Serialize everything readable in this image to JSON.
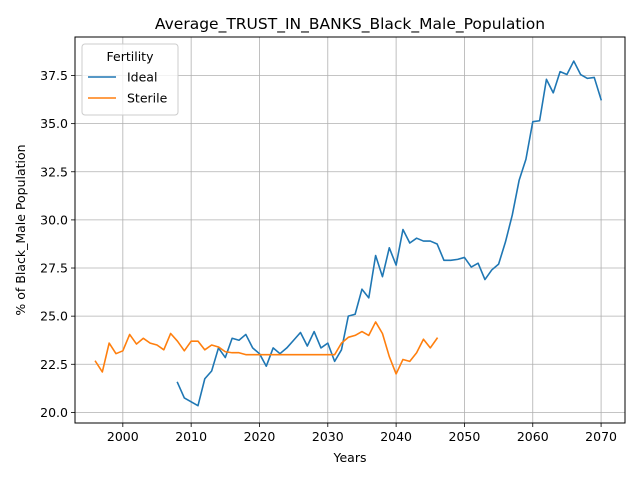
{
  "chart_data": {
    "type": "line",
    "title": "Average_TRUST_IN_BANKS_Black_Male_Population",
    "xlabel": "Years",
    "ylabel": "% of Black_Male Population",
    "xlim": [
      1993,
      2073.5
    ],
    "ylim": [
      19.45,
      39.5
    ],
    "xticks": [
      2000,
      2010,
      2020,
      2030,
      2040,
      2050,
      2060,
      2070
    ],
    "yticks": [
      20.0,
      22.5,
      25.0,
      27.5,
      30.0,
      32.5,
      35.0,
      37.5
    ],
    "grid": true,
    "legend": {
      "title": "Fertility",
      "position": "top-left"
    },
    "series": [
      {
        "name": "Ideal",
        "color": "#1f77b4",
        "x": [
          2008,
          2009,
          2010,
          2011,
          2012,
          2013,
          2014,
          2015,
          2016,
          2017,
          2018,
          2019,
          2020,
          2021,
          2022,
          2023,
          2024,
          2025,
          2026,
          2027,
          2028,
          2029,
          2030,
          2031,
          2032,
          2033,
          2034,
          2035,
          2036,
          2037,
          2038,
          2039,
          2040,
          2041,
          2042,
          2043,
          2044,
          2045,
          2046,
          2047,
          2048,
          2049,
          2050,
          2051,
          2052,
          2053,
          2054,
          2055,
          2056,
          2057,
          2058,
          2059,
          2060,
          2061,
          2062,
          2063,
          2064,
          2065,
          2066,
          2067,
          2068,
          2069,
          2070
        ],
        "values": [
          21.55,
          20.75,
          20.55,
          20.35,
          21.75,
          22.15,
          23.35,
          22.85,
          23.85,
          23.75,
          24.05,
          23.35,
          23.05,
          22.4,
          23.35,
          23.05,
          23.35,
          23.75,
          24.15,
          23.45,
          24.2,
          23.35,
          23.6,
          22.65,
          23.25,
          25.0,
          25.1,
          26.4,
          25.95,
          28.15,
          27.05,
          28.55,
          27.65,
          29.5,
          28.8,
          29.05,
          28.9,
          28.9,
          28.75,
          27.9,
          27.9,
          27.95,
          28.05,
          27.55,
          27.75,
          26.9,
          27.4,
          27.7,
          28.85,
          30.25,
          32.05,
          33.15,
          35.1,
          35.15,
          37.3,
          36.6,
          37.7,
          37.55,
          38.25,
          37.55,
          37.35,
          37.4,
          36.25
        ]
      },
      {
        "name": "Sterile",
        "color": "#ff7f0e",
        "x": [
          1996,
          1997,
          1998,
          1999,
          2000,
          2001,
          2002,
          2003,
          2004,
          2005,
          2006,
          2007,
          2008,
          2009,
          2010,
          2011,
          2012,
          2013,
          2014,
          2015,
          2016,
          2017,
          2018,
          2019,
          2020,
          2021,
          2022,
          2023,
          2024,
          2025,
          2026,
          2027,
          2028,
          2029,
          2030,
          2031,
          2032,
          2033,
          2034,
          2035,
          2036,
          2037,
          2038,
          2039,
          2040,
          2041,
          2042,
          2043,
          2044,
          2045,
          2046
        ],
        "values": [
          22.65,
          22.1,
          23.6,
          23.05,
          23.2,
          24.05,
          23.55,
          23.85,
          23.6,
          23.5,
          23.25,
          24.1,
          23.7,
          23.2,
          23.7,
          23.7,
          23.25,
          23.5,
          23.4,
          23.15,
          23.1,
          23.1,
          23.0,
          23.0,
          23.0,
          23.0,
          23.0,
          23.0,
          23.0,
          23.0,
          23.0,
          23.0,
          23.0,
          23.0,
          23.0,
          23.0,
          23.6,
          23.9,
          24.0,
          24.2,
          24.0,
          24.7,
          24.1,
          22.9,
          22.0,
          22.75,
          22.65,
          23.1,
          23.8,
          23.35,
          23.85
        ]
      }
    ]
  }
}
